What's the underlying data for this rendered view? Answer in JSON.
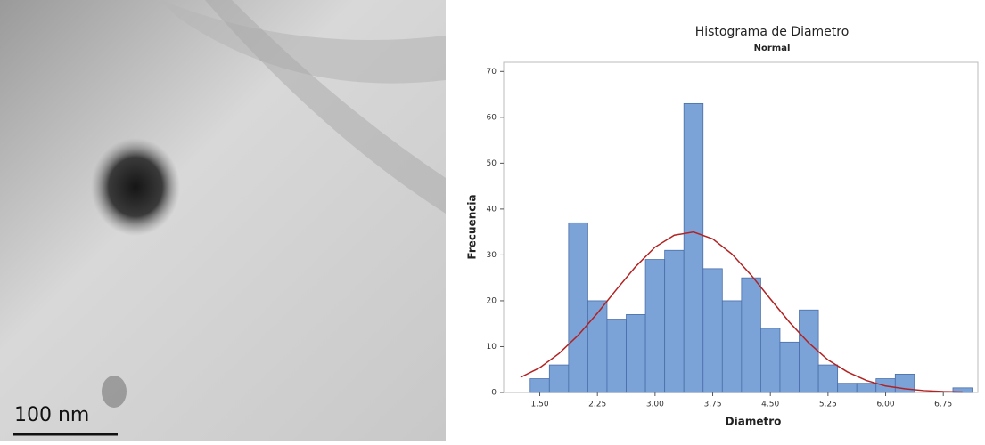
{
  "image": {
    "scale_label": "100 nm"
  },
  "chart_data": {
    "type": "histogram",
    "title": "Histograma de Diametro",
    "subtitle": "Normal",
    "x_label": "Diametro",
    "y_label": "Frecuencia",
    "bins": [
      1.375,
      1.625,
      1.875,
      2.125,
      2.375,
      2.625,
      2.875,
      3.125,
      3.375,
      3.625,
      3.875,
      4.125,
      4.375,
      4.625,
      4.875,
      5.125,
      5.375,
      5.625,
      5.875,
      6.125,
      6.375,
      6.625,
      6.875,
      7.125
    ],
    "values": [
      3,
      6,
      37,
      20,
      16,
      17,
      29,
      31,
      63,
      27,
      20,
      25,
      14,
      11,
      18,
      6,
      2,
      2,
      3,
      4,
      0,
      0,
      1
    ],
    "color": "#7ba3d8",
    "edge_color": "#4a6ea9",
    "curve": {
      "color": "#b22222",
      "x": [
        1.25,
        1.5,
        1.75,
        2.0,
        2.25,
        2.5,
        2.75,
        3.0,
        3.25,
        3.5,
        3.75,
        4.0,
        4.25,
        4.5,
        4.75,
        5.0,
        5.25,
        5.5,
        5.75,
        6.0,
        6.25,
        6.5,
        6.75,
        7.0
      ],
      "values": [
        3.3,
        5.4,
        8.5,
        12.5,
        17.3,
        22.5,
        27.5,
        31.7,
        34.3,
        35,
        33.5,
        30.2,
        25.6,
        20.4,
        15.3,
        10.8,
        7.1,
        4.5,
        2.6,
        1.4,
        0.8,
        0.4,
        0.2,
        0.1
      ]
    },
    "xlim": [
      1.03,
      7.2
    ],
    "xticks": [
      {
        "value": 1.5,
        "label": "1.50"
      },
      {
        "value": 2.25,
        "label": "2.25"
      },
      {
        "value": 3,
        "label": "3.00"
      },
      {
        "value": 3.75,
        "label": "3.75"
      },
      {
        "value": 4.5,
        "label": "4.50"
      },
      {
        "value": 5.25,
        "label": "5.25"
      },
      {
        "value": 6,
        "label": "6.00"
      },
      {
        "value": 6.75,
        "label": "6.75"
      }
    ],
    "ylim": [
      0,
      72
    ],
    "yticks": [
      0,
      10,
      20,
      30,
      40,
      50,
      60,
      70
    ]
  }
}
